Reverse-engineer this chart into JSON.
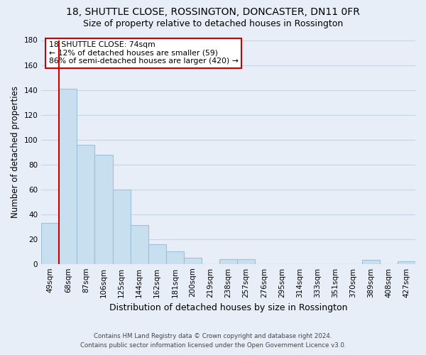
{
  "title": "18, SHUTTLE CLOSE, ROSSINGTON, DONCASTER, DN11 0FR",
  "subtitle": "Size of property relative to detached houses in Rossington",
  "xlabel": "Distribution of detached houses by size in Rossington",
  "ylabel": "Number of detached properties",
  "categories": [
    "49sqm",
    "68sqm",
    "87sqm",
    "106sqm",
    "125sqm",
    "144sqm",
    "162sqm",
    "181sqm",
    "200sqm",
    "219sqm",
    "238sqm",
    "257sqm",
    "276sqm",
    "295sqm",
    "314sqm",
    "333sqm",
    "351sqm",
    "370sqm",
    "389sqm",
    "408sqm",
    "427sqm"
  ],
  "values": [
    33,
    141,
    96,
    88,
    60,
    31,
    16,
    10,
    5,
    0,
    4,
    4,
    0,
    0,
    0,
    0,
    0,
    0,
    3,
    0,
    2
  ],
  "bar_color": "#c8dff0",
  "bar_edge_color": "#a0bfd8",
  "vline_x_index": 1,
  "vline_color": "#cc0000",
  "ylim": [
    0,
    180
  ],
  "yticks": [
    0,
    20,
    40,
    60,
    80,
    100,
    120,
    140,
    160,
    180
  ],
  "annotation_title": "18 SHUTTLE CLOSE: 74sqm",
  "annotation_line1": "← 12% of detached houses are smaller (59)",
  "annotation_line2": "86% of semi-detached houses are larger (420) →",
  "footer_line1": "Contains HM Land Registry data © Crown copyright and database right 2024.",
  "footer_line2": "Contains public sector information licensed under the Open Government Licence v3.0.",
  "background_color": "#e8eef8",
  "grid_color": "#c8d4e8",
  "title_fontsize": 10,
  "subtitle_fontsize": 9,
  "tick_fontsize": 7.5,
  "ylabel_fontsize": 8.5,
  "xlabel_fontsize": 9
}
